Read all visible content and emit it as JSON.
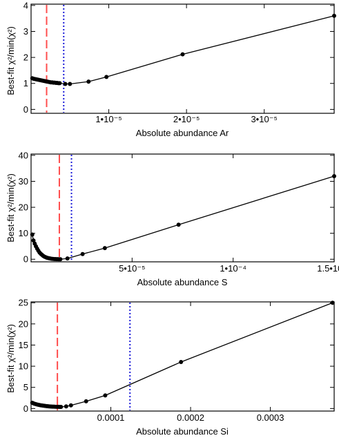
{
  "chart_data": [
    {
      "type": "line",
      "xlabel": "Absolute abundance Ar",
      "ylabel": "Best-fit χ²/min(χ²)",
      "xlim": [
        0,
        3.9e-05
      ],
      "ylim": [
        -0.15,
        4.05
      ],
      "xticks": [
        {
          "value": 1e-05,
          "label": "1•10⁻⁵"
        },
        {
          "value": 2e-05,
          "label": "2•10⁻⁵"
        },
        {
          "value": 3e-05,
          "label": "3•10⁻⁵"
        }
      ],
      "yticks": [
        {
          "value": 0,
          "label": "0"
        },
        {
          "value": 1,
          "label": "1"
        },
        {
          "value": 2,
          "label": "2"
        },
        {
          "value": 3,
          "label": "3"
        },
        {
          "value": 4,
          "label": "4"
        }
      ],
      "series": [
        {
          "x": [
            1.6e-07,
            3.2e-07,
            4.8e-07,
            6.4e-07,
            8e-07,
            9.6e-07,
            1.12e-06,
            1.28e-06,
            1.44e-06,
            1.6e-06,
            1.76e-06,
            1.92e-06,
            2.08e-06,
            2.24e-06,
            2.4e-06,
            2.56e-06,
            2.72e-06,
            2.88e-06,
            3.04e-06,
            3.2e-06,
            3.36e-06,
            3.52e-06,
            3.68e-06,
            4.4e-06,
            5e-06,
            7.4e-06,
            9.7e-06,
            1.95e-05,
            3.9e-05
          ],
          "y": [
            1.2,
            1.18,
            1.17,
            1.16,
            1.15,
            1.14,
            1.13,
            1.12,
            1.11,
            1.1,
            1.09,
            1.08,
            1.07,
            1.06,
            1.05,
            1.04,
            1.04,
            1.03,
            1.03,
            1.02,
            1.02,
            1.01,
            1.01,
            0.98,
            0.98,
            1.07,
            1.25,
            2.12,
            3.6
          ]
        }
      ],
      "vlines": [
        {
          "x": 2e-06,
          "style": "dashed",
          "color": "#ff4d4d"
        },
        {
          "x": 4.2e-06,
          "style": "dotted",
          "color": "#1a1ad9"
        }
      ]
    },
    {
      "type": "line",
      "xlabel": "Absolute abundance S",
      "ylabel": "Best-fit χ²/min(χ²)",
      "xlim": [
        0,
        0.00015
      ],
      "ylim": [
        -1.0,
        40.5
      ],
      "xticks": [
        {
          "value": 5e-05,
          "label": "5•10⁻⁵"
        },
        {
          "value": 0.0001,
          "label": "1•10⁻⁴"
        },
        {
          "value": 0.00015,
          "label": "1.5•10⁻⁴"
        }
      ],
      "yticks": [
        {
          "value": 0,
          "label": "0"
        },
        {
          "value": 10,
          "label": "10"
        },
        {
          "value": 20,
          "label": "20"
        },
        {
          "value": 30,
          "label": "30"
        },
        {
          "value": 40,
          "label": "40"
        }
      ],
      "series": [
        {
          "x": [
            6e-07,
            1.2e-06,
            1.8e-06,
            2.4e-06,
            3e-06,
            3.6e-06,
            4.2e-06,
            4.8e-06,
            5.4e-06,
            6e-06,
            6.6e-06,
            7.2e-06,
            7.8e-06,
            8.4e-06,
            9e-06,
            9.6e-06,
            1.02e-05,
            1.08e-05,
            1.14e-05,
            1.2e-05,
            1.26e-05,
            1.32e-05,
            1.38e-05,
            1.45e-05,
            1.8e-05,
            2.55e-05,
            3.65e-05,
            7.3e-05,
            0.00015
          ],
          "y": [
            9.5,
            7.2,
            6.0,
            5.0,
            4.1,
            3.3,
            2.6,
            2.1,
            1.7,
            1.3,
            1.0,
            0.8,
            0.6,
            0.45,
            0.35,
            0.25,
            0.18,
            0.12,
            0.08,
            0.05,
            0.03,
            0.02,
            0.01,
            0.0,
            0.3,
            2.0,
            4.3,
            13.3,
            32.0
          ]
        }
      ],
      "vlines": [
        {
          "x": 1.4e-05,
          "style": "dashed",
          "color": "#ff4d4d"
        },
        {
          "x": 2e-05,
          "style": "dotted",
          "color": "#1a1ad9"
        }
      ]
    },
    {
      "type": "line",
      "xlabel": "Absolute abundance Si",
      "ylabel": "Best-fit χ²/min(χ²)",
      "xlim": [
        0,
        0.00038
      ],
      "ylim": [
        -0.6,
        25.2
      ],
      "xticks": [
        {
          "value": 0.0001,
          "label": "0.0001"
        },
        {
          "value": 0.0002,
          "label": "0.0002"
        },
        {
          "value": 0.0003,
          "label": "0.0003"
        }
      ],
      "yticks": [
        {
          "value": 0,
          "label": "0"
        },
        {
          "value": 5,
          "label": "5"
        },
        {
          "value": 10,
          "label": "10"
        },
        {
          "value": 15,
          "label": "15"
        },
        {
          "value": 20,
          "label": "20"
        },
        {
          "value": 25,
          "label": "25"
        }
      ],
      "series": [
        {
          "x": [
            1.5e-06,
            3e-06,
            4.5e-06,
            6e-06,
            7.5e-06,
            9e-06,
            1.05e-05,
            1.2e-05,
            1.35e-05,
            1.5e-05,
            1.65e-05,
            1.8e-05,
            1.95e-05,
            2.1e-05,
            2.25e-05,
            2.4e-05,
            2.55e-05,
            2.7e-05,
            2.85e-05,
            3e-05,
            3.15e-05,
            3.3e-05,
            3.45e-05,
            3.6e-05,
            3.75e-05,
            4.4e-05,
            5e-05,
            6.9e-05,
            9.3e-05,
            0.000188,
            0.000378
          ],
          "y": [
            1.35,
            1.22,
            1.12,
            1.03,
            0.95,
            0.88,
            0.82,
            0.77,
            0.72,
            0.68,
            0.64,
            0.6,
            0.57,
            0.54,
            0.51,
            0.49,
            0.47,
            0.45,
            0.44,
            0.42,
            0.41,
            0.4,
            0.39,
            0.38,
            0.38,
            0.5,
            0.75,
            1.7,
            3.1,
            11.0,
            25.0
          ]
        }
      ],
      "vlines": [
        {
          "x": 3.3e-05,
          "style": "dashed",
          "color": "#ff4d4d"
        },
        {
          "x": 0.000124,
          "style": "dotted",
          "color": "#1a1ad9"
        }
      ]
    }
  ]
}
